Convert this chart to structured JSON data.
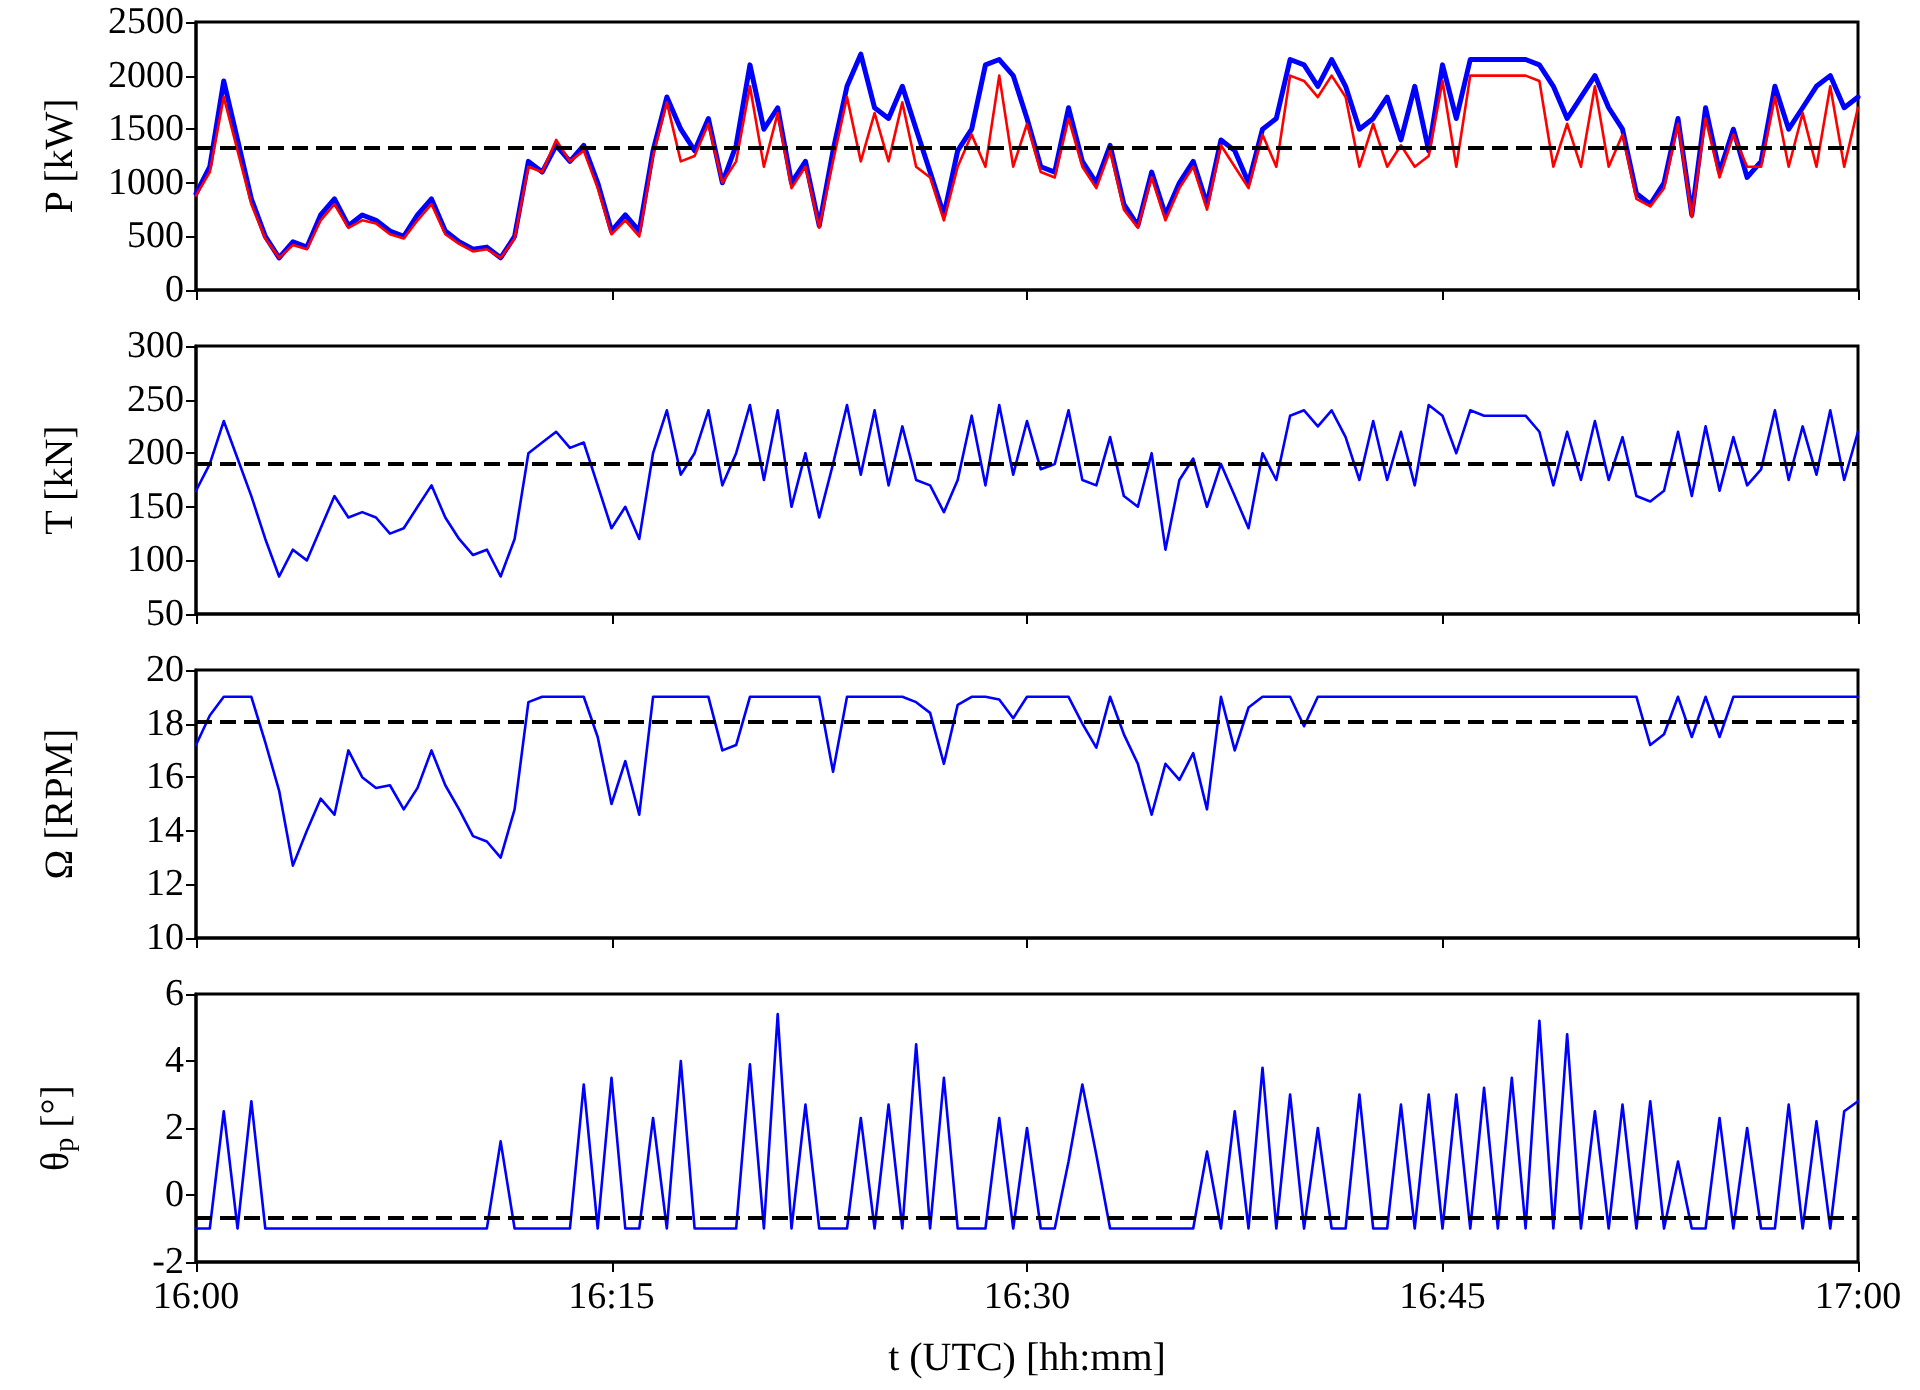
{
  "chart_data": [
    {
      "type": "line",
      "ylabel": "P [kW]",
      "tick_labels": "y",
      "grid": false,
      "x": [
        16,
        16.0083,
        16.0167,
        16.025,
        16.0333,
        16.0417,
        16.05,
        16.0583,
        16.0667,
        16.075,
        16.0833,
        16.0917,
        16.1,
        16.1083,
        16.1167,
        16.125,
        16.1333,
        16.1417,
        16.15,
        16.1583,
        16.1667,
        16.175,
        16.1833,
        16.1917,
        16.2,
        16.2083,
        16.2167,
        16.225,
        16.2333,
        16.2417,
        16.25,
        16.2583,
        16.2667,
        16.275,
        16.2833,
        16.2917,
        16.3,
        16.3083,
        16.3167,
        16.325,
        16.3333,
        16.3417,
        16.35,
        16.3583,
        16.3667,
        16.375,
        16.3833,
        16.3917,
        16.4,
        16.4083,
        16.4167,
        16.425,
        16.4333,
        16.4417,
        16.45,
        16.4583,
        16.4667,
        16.475,
        16.4833,
        16.4917,
        16.5,
        16.5083,
        16.5167,
        16.525,
        16.5333,
        16.5417,
        16.55,
        16.5583,
        16.5667,
        16.575,
        16.5833,
        16.5917,
        16.6,
        16.6083,
        16.6167,
        16.625,
        16.6333,
        16.6417,
        16.65,
        16.6583,
        16.6667,
        16.675,
        16.6833,
        16.6917,
        16.7,
        16.7083,
        16.7167,
        16.725,
        16.7333,
        16.7417,
        16.75,
        16.7583,
        16.7667,
        16.775,
        16.7833,
        16.7917,
        16.8,
        16.8083,
        16.8167,
        16.825,
        16.8333,
        16.8417,
        16.85,
        16.8583,
        16.8667,
        16.875,
        16.8833,
        16.8917,
        16.9,
        16.9083,
        16.9167,
        16.925,
        16.9333,
        16.9417,
        16.95,
        16.9583,
        16.9667,
        16.975,
        16.9833,
        16.9917,
        17
      ],
      "xlim": [
        16,
        17
      ],
      "xticks": [
        {
          "value": 16,
          "label": null
        },
        {
          "value": 16.25,
          "label": null
        },
        {
          "value": 16.5,
          "label": null
        },
        {
          "value": 16.75,
          "label": null
        },
        {
          "value": 17,
          "label": null
        }
      ],
      "ylim": [
        0,
        2500
      ],
      "yticks": [
        0,
        500,
        1000,
        1500,
        2000,
        2500
      ],
      "ref_lines": [
        {
          "axis": "y",
          "value": 1320,
          "color": "#000000",
          "line_style": "dashed"
        }
      ],
      "series": [
        {
          "color": "#0000ff",
          "values": [
            900,
            1150,
            1950,
            1400,
            850,
            500,
            300,
            450,
            400,
            700,
            850,
            600,
            700,
            650,
            550,
            500,
            700,
            850,
            550,
            450,
            380,
            400,
            300,
            500,
            1200,
            1100,
            1350,
            1200,
            1350,
            1000,
            550,
            700,
            550,
            1300,
            1800,
            1500,
            1300,
            1600,
            1000,
            1350,
            2100,
            1500,
            1700,
            1000,
            1200,
            600,
            1300,
            1900,
            2200,
            1700,
            1600,
            1900,
            1500,
            1100,
            700,
            1300,
            1500,
            2100,
            2150,
            2000,
            1600,
            1150,
            1100,
            1700,
            1200,
            1000,
            1350,
            800,
            600,
            1100,
            700,
            1000,
            1200,
            800,
            1400,
            1300,
            1000,
            1500,
            1600,
            2150,
            2100,
            1900,
            2150,
            1900,
            1500,
            1600,
            1800,
            1400,
            1900,
            1300,
            2100,
            1600,
            2150,
            2150,
            2150,
            2150,
            2150,
            2100,
            1900,
            1600,
            1800,
            2000,
            1700,
            1500,
            900,
            800,
            1000,
            1600,
            700,
            1700,
            1100,
            1500,
            1050,
            1200,
            1900,
            1500,
            1700,
            1900,
            2000,
            1700,
            1800
          ]
        },
        {
          "color": "#ff0000",
          "values": [
            880,
            1100,
            1800,
            1300,
            800,
            480,
            300,
            420,
            380,
            650,
            800,
            580,
            650,
            620,
            520,
            480,
            650,
            800,
            520,
            430,
            360,
            380,
            300,
            480,
            1150,
            1100,
            1400,
            1200,
            1300,
            950,
            520,
            650,
            500,
            1250,
            1750,
            1200,
            1250,
            1550,
            1000,
            1200,
            1900,
            1150,
            1650,
            950,
            1150,
            580,
            1200,
            1800,
            1200,
            1650,
            1200,
            1750,
            1150,
            1050,
            650,
            1150,
            1450,
            1150,
            2000,
            1150,
            1550,
            1100,
            1050,
            1600,
            1150,
            950,
            1300,
            750,
            580,
            1050,
            650,
            950,
            1150,
            750,
            1350,
            1150,
            950,
            1450,
            1150,
            2000,
            1950,
            1800,
            2000,
            1800,
            1150,
            1550,
            1150,
            1350,
            1150,
            1250,
            1950,
            1150,
            2000,
            2000,
            2000,
            2000,
            2000,
            1950,
            1150,
            1550,
            1150,
            1900,
            1150,
            1450,
            850,
            780,
            950,
            1550,
            680,
            1600,
            1050,
            1450,
            1150,
            1150,
            1800,
            1150,
            1650,
            1150,
            1900,
            1150,
            1700
          ]
        }
      ]
    },
    {
      "type": "line",
      "ylabel": "T [kN]",
      "tick_labels": "y",
      "grid": false,
      "x": [
        16,
        16.0083,
        16.0167,
        16.025,
        16.0333,
        16.0417,
        16.05,
        16.0583,
        16.0667,
        16.075,
        16.0833,
        16.0917,
        16.1,
        16.1083,
        16.1167,
        16.125,
        16.1333,
        16.1417,
        16.15,
        16.1583,
        16.1667,
        16.175,
        16.1833,
        16.1917,
        16.2,
        16.2083,
        16.2167,
        16.225,
        16.2333,
        16.2417,
        16.25,
        16.2583,
        16.2667,
        16.275,
        16.2833,
        16.2917,
        16.3,
        16.3083,
        16.3167,
        16.325,
        16.3333,
        16.3417,
        16.35,
        16.3583,
        16.3667,
        16.375,
        16.3833,
        16.3917,
        16.4,
        16.4083,
        16.4167,
        16.425,
        16.4333,
        16.4417,
        16.45,
        16.4583,
        16.4667,
        16.475,
        16.4833,
        16.4917,
        16.5,
        16.5083,
        16.5167,
        16.525,
        16.5333,
        16.5417,
        16.55,
        16.5583,
        16.5667,
        16.575,
        16.5833,
        16.5917,
        16.6,
        16.6083,
        16.6167,
        16.625,
        16.6333,
        16.6417,
        16.65,
        16.6583,
        16.6667,
        16.675,
        16.6833,
        16.6917,
        16.7,
        16.7083,
        16.7167,
        16.725,
        16.7333,
        16.7417,
        16.75,
        16.7583,
        16.7667,
        16.775,
        16.7833,
        16.7917,
        16.8,
        16.8083,
        16.8167,
        16.825,
        16.8333,
        16.8417,
        16.85,
        16.8583,
        16.8667,
        16.875,
        16.8833,
        16.8917,
        16.9,
        16.9083,
        16.9167,
        16.925,
        16.9333,
        16.9417,
        16.95,
        16.9583,
        16.9667,
        16.975,
        16.9833,
        16.9917,
        17
      ],
      "xlim": [
        16,
        17
      ],
      "xticks": [
        {
          "value": 16,
          "label": null
        },
        {
          "value": 16.25,
          "label": null
        },
        {
          "value": 16.5,
          "label": null
        },
        {
          "value": 16.75,
          "label": null
        },
        {
          "value": 17,
          "label": null
        }
      ],
      "ylim": [
        50,
        300
      ],
      "yticks": [
        50,
        100,
        150,
        200,
        250,
        300
      ],
      "ref_lines": [
        {
          "axis": "y",
          "value": 190,
          "color": "#000000",
          "line_style": "dashed"
        }
      ],
      "series": [
        {
          "color": "#0000ff",
          "values": [
            165,
            190,
            230,
            195,
            160,
            120,
            85,
            110,
            100,
            130,
            160,
            140,
            145,
            140,
            125,
            130,
            150,
            170,
            140,
            120,
            105,
            110,
            85,
            120,
            200,
            210,
            220,
            205,
            210,
            170,
            130,
            150,
            120,
            200,
            240,
            180,
            200,
            240,
            170,
            200,
            245,
            175,
            240,
            150,
            200,
            140,
            190,
            245,
            180,
            240,
            170,
            225,
            175,
            170,
            145,
            175,
            235,
            170,
            245,
            180,
            230,
            185,
            190,
            240,
            175,
            170,
            215,
            160,
            150,
            200,
            110,
            175,
            195,
            150,
            190,
            160,
            130,
            200,
            175,
            235,
            240,
            225,
            240,
            215,
            175,
            230,
            175,
            220,
            170,
            245,
            235,
            200,
            240,
            235,
            235,
            235,
            235,
            220,
            170,
            220,
            175,
            230,
            175,
            215,
            160,
            155,
            165,
            220,
            160,
            225,
            165,
            215,
            170,
            185,
            240,
            175,
            225,
            180,
            240,
            175,
            220
          ]
        }
      ]
    },
    {
      "type": "line",
      "ylabel": "Ω [RPM]",
      "tick_labels": "y",
      "grid": false,
      "x": [
        16,
        16.0083,
        16.0167,
        16.025,
        16.0333,
        16.0417,
        16.05,
        16.0583,
        16.0667,
        16.075,
        16.0833,
        16.0917,
        16.1,
        16.1083,
        16.1167,
        16.125,
        16.1333,
        16.1417,
        16.15,
        16.1583,
        16.1667,
        16.175,
        16.1833,
        16.1917,
        16.2,
        16.2083,
        16.2167,
        16.225,
        16.2333,
        16.2417,
        16.25,
        16.2583,
        16.2667,
        16.275,
        16.2833,
        16.2917,
        16.3,
        16.3083,
        16.3167,
        16.325,
        16.3333,
        16.3417,
        16.35,
        16.3583,
        16.3667,
        16.375,
        16.3833,
        16.3917,
        16.4,
        16.4083,
        16.4167,
        16.425,
        16.4333,
        16.4417,
        16.45,
        16.4583,
        16.4667,
        16.475,
        16.4833,
        16.4917,
        16.5,
        16.5083,
        16.5167,
        16.525,
        16.5333,
        16.5417,
        16.55,
        16.5583,
        16.5667,
        16.575,
        16.5833,
        16.5917,
        16.6,
        16.6083,
        16.6167,
        16.625,
        16.6333,
        16.6417,
        16.65,
        16.6583,
        16.6667,
        16.675,
        16.6833,
        16.6917,
        16.7,
        16.7083,
        16.7167,
        16.725,
        16.7333,
        16.7417,
        16.75,
        16.7583,
        16.7667,
        16.775,
        16.7833,
        16.7917,
        16.8,
        16.8083,
        16.8167,
        16.825,
        16.8333,
        16.8417,
        16.85,
        16.8583,
        16.8667,
        16.875,
        16.8833,
        16.8917,
        16.9,
        16.9083,
        16.9167,
        16.925,
        16.9333,
        16.9417,
        16.95,
        16.9583,
        16.9667,
        16.975,
        16.9833,
        16.9917,
        17
      ],
      "xlim": [
        16,
        17
      ],
      "xticks": [
        {
          "value": 16,
          "label": null
        },
        {
          "value": 16.25,
          "label": null
        },
        {
          "value": 16.5,
          "label": null
        },
        {
          "value": 16.75,
          "label": null
        },
        {
          "value": 17,
          "label": null
        }
      ],
      "ylim": [
        10,
        20
      ],
      "yticks": [
        10,
        12,
        14,
        16,
        18,
        20
      ],
      "ref_lines": [
        {
          "axis": "y",
          "value": 18.1,
          "color": "#000000",
          "line_style": "dashed"
        }
      ],
      "series": [
        {
          "color": "#0000ff",
          "values": [
            17.2,
            18.3,
            19,
            19,
            19,
            17.3,
            15.5,
            12.7,
            14,
            15.2,
            14.6,
            17,
            16,
            15.6,
            15.7,
            14.8,
            15.6,
            17,
            15.7,
            14.8,
            13.8,
            13.6,
            13,
            14.8,
            18.8,
            19,
            19,
            19,
            19,
            17.5,
            15,
            16.6,
            14.6,
            19,
            19,
            19,
            19,
            19,
            17,
            17.2,
            19,
            19,
            19,
            19,
            19,
            19,
            16.2,
            19,
            19,
            19,
            19,
            19,
            18.8,
            18.4,
            16.5,
            18.7,
            19,
            19,
            18.9,
            18.2,
            19,
            19,
            19,
            19,
            18,
            17.1,
            19,
            17.6,
            16.5,
            14.6,
            16.5,
            15.9,
            16.9,
            14.8,
            19,
            17,
            18.6,
            19,
            19,
            19,
            17.9,
            19,
            19,
            19,
            19,
            19,
            19,
            19,
            19,
            19,
            19,
            19,
            19,
            19,
            19,
            19,
            19,
            19,
            19,
            19,
            19,
            19,
            19,
            19,
            19,
            17.2,
            17.6,
            19,
            17.5,
            19,
            17.5,
            19,
            19,
            19,
            19,
            19,
            19,
            19,
            19,
            19,
            19
          ]
        }
      ]
    },
    {
      "type": "line",
      "ylabel": "θ$_{p}$ [°]",
      "xlabel": "t (UTC) [hh:mm]",
      "grid": false,
      "x": [
        16,
        16.0083,
        16.0167,
        16.025,
        16.0333,
        16.0417,
        16.05,
        16.0583,
        16.0667,
        16.075,
        16.0833,
        16.0917,
        16.1,
        16.1083,
        16.1167,
        16.125,
        16.1333,
        16.1417,
        16.15,
        16.1583,
        16.1667,
        16.175,
        16.1833,
        16.1917,
        16.2,
        16.2083,
        16.2167,
        16.225,
        16.2333,
        16.2417,
        16.25,
        16.2583,
        16.2667,
        16.275,
        16.2833,
        16.2917,
        16.3,
        16.3083,
        16.3167,
        16.325,
        16.3333,
        16.3417,
        16.35,
        16.3583,
        16.3667,
        16.375,
        16.3833,
        16.3917,
        16.4,
        16.4083,
        16.4167,
        16.425,
        16.4333,
        16.4417,
        16.45,
        16.4583,
        16.4667,
        16.475,
        16.4833,
        16.4917,
        16.5,
        16.5083,
        16.5167,
        16.525,
        16.5333,
        16.5417,
        16.55,
        16.5583,
        16.5667,
        16.575,
        16.5833,
        16.5917,
        16.6,
        16.6083,
        16.6167,
        16.625,
        16.6333,
        16.6417,
        16.65,
        16.6583,
        16.6667,
        16.675,
        16.6833,
        16.6917,
        16.7,
        16.7083,
        16.7167,
        16.725,
        16.7333,
        16.7417,
        16.75,
        16.7583,
        16.7667,
        16.775,
        16.7833,
        16.7917,
        16.8,
        16.8083,
        16.8167,
        16.825,
        16.8333,
        16.8417,
        16.85,
        16.8583,
        16.8667,
        16.875,
        16.8833,
        16.8917,
        16.9,
        16.9083,
        16.9167,
        16.925,
        16.9333,
        16.9417,
        16.95,
        16.9583,
        16.9667,
        16.975,
        16.9833,
        16.9917,
        17
      ],
      "xlim": [
        16,
        17
      ],
      "xticks": [
        {
          "value": 16,
          "label": "16:00"
        },
        {
          "value": 16.25,
          "label": "16:15"
        },
        {
          "value": 16.5,
          "label": "16:30"
        },
        {
          "value": 16.75,
          "label": "16:45"
        },
        {
          "value": 17,
          "label": "17:00"
        }
      ],
      "ylim": [
        -2,
        6
      ],
      "yticks": [
        -2,
        0,
        2,
        4,
        6
      ],
      "ref_lines": [
        {
          "axis": "y",
          "value": -0.65,
          "color": "#000000",
          "line_style": "dashed"
        }
      ],
      "series": [
        {
          "color": "#0000ff",
          "values": [
            -1,
            -1,
            2.5,
            -1,
            2.8,
            -1,
            -1,
            -1,
            -1,
            -1,
            -1,
            -1,
            -1,
            -1,
            -1,
            -1,
            -1,
            -1,
            -1,
            -1,
            -1,
            -1,
            1.6,
            -1,
            -1,
            -1,
            -1,
            -1,
            3.3,
            -1,
            3.5,
            -1,
            -1,
            2.3,
            -1,
            4.0,
            -1,
            -1,
            -1,
            -1,
            3.9,
            -1,
            5.4,
            -1,
            2.7,
            -1,
            -1,
            -1,
            2.3,
            -1,
            2.7,
            -1,
            4.5,
            -1,
            3.5,
            -1,
            -1,
            -1,
            2.3,
            -1,
            2.0,
            -1,
            -1,
            1.0,
            3.3,
            1.2,
            -1,
            -1,
            -1,
            -1,
            -1,
            -1,
            -1,
            1.3,
            -1,
            2.5,
            -1,
            3.8,
            -1,
            3.0,
            -1,
            2.0,
            -1,
            -1,
            3.0,
            -1,
            -1,
            2.7,
            -1,
            3.0,
            -1,
            3.0,
            -1,
            3.2,
            -1,
            3.5,
            -1,
            5.2,
            -1,
            4.8,
            -1,
            2.5,
            -1,
            2.7,
            -1,
            2.8,
            -1,
            1.0,
            -1,
            -1,
            2.3,
            -1,
            2.0,
            -1,
            -1,
            2.7,
            -1,
            2.2,
            -1,
            2.5,
            2.8
          ]
        }
      ]
    }
  ]
}
